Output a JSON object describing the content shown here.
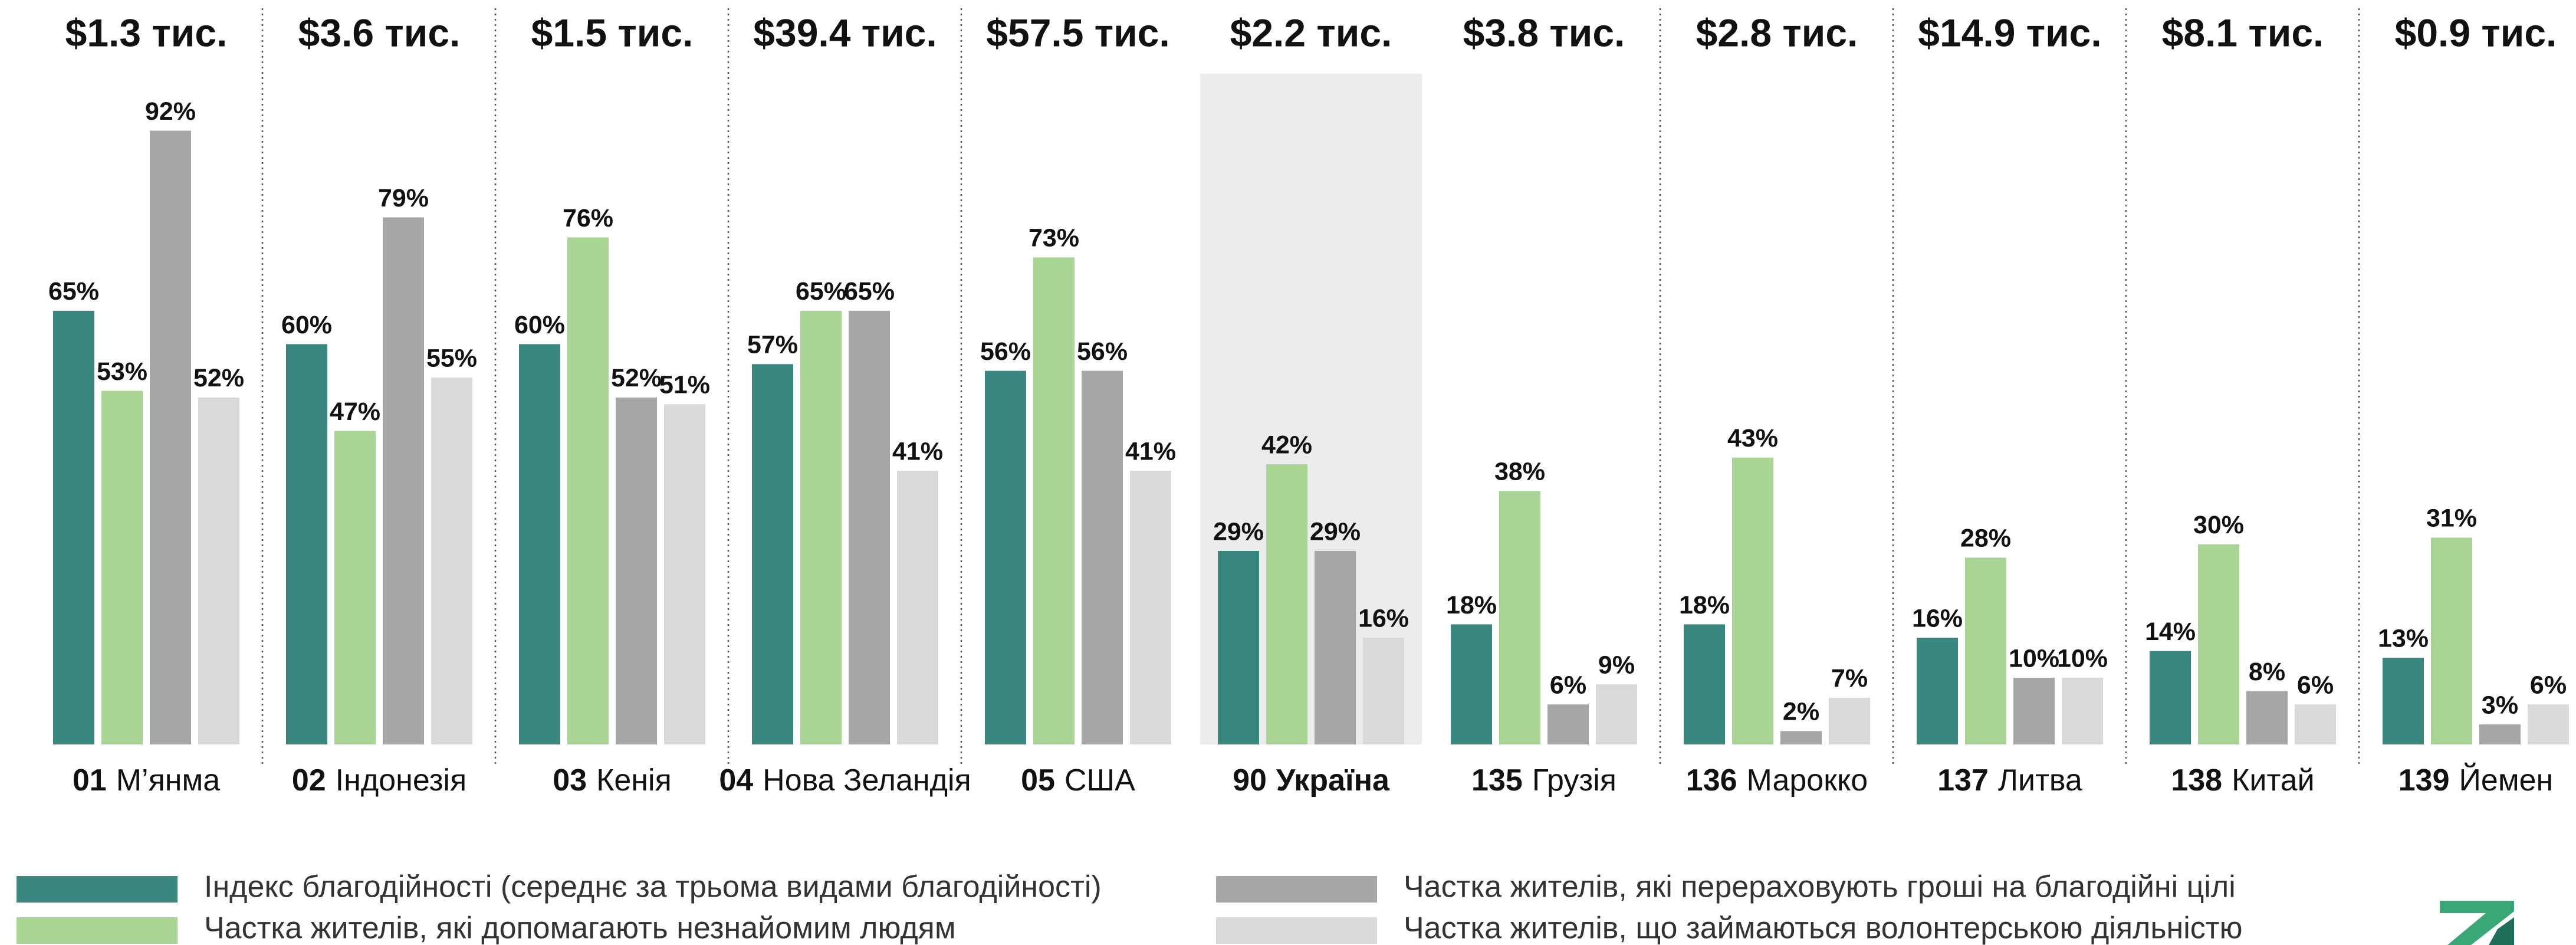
{
  "chart_data": {
    "type": "bar",
    "top_labels": [
      "$1.3 тис.",
      "$3.6 тис.",
      "$1.5 тис.",
      "$39.4 тис.",
      "$57.5 тис.",
      "$2.2 тис.",
      "$3.8 тис.",
      "$2.8 тис.",
      "$14.9 тис.",
      "$8.1 тис.",
      "$0.9 тис."
    ],
    "ranks": [
      "01",
      "02",
      "03",
      "04",
      "05",
      "90",
      "135",
      "136",
      "137",
      "138",
      "139"
    ],
    "categories": [
      "М’янма",
      "Індонезія",
      "Кенія",
      "Нова Зеландія",
      "США",
      "Україна",
      "Грузія",
      "Марокко",
      "Литва",
      "Китай",
      "Йемен"
    ],
    "highlight": 5,
    "ylim": [
      0,
      100
    ],
    "series": [
      {
        "name": "Індекс благодійності (середнє за трьома видами благодійності)",
        "color": "#3a877f",
        "values": [
          65,
          60,
          60,
          57,
          56,
          29,
          18,
          18,
          16,
          14,
          13
        ],
        "value_labels": [
          "65%",
          "60%",
          "60%",
          "57%",
          "56%",
          "29%",
          "18%",
          "18%",
          "16%",
          "14%",
          "13%"
        ]
      },
      {
        "name": "Частка жителів, які допомагають незнайомим людям",
        "color": "#a8d594",
        "values": [
          53,
          47,
          76,
          65,
          73,
          42,
          38,
          43,
          28,
          30,
          31
        ],
        "value_labels": [
          "53%",
          "47%",
          "76%",
          "65%",
          "73%",
          "42%",
          "38%",
          "43%",
          "28%",
          "30%",
          "31%"
        ]
      },
      {
        "name": "Частка жителів, які перераховують гроші на благодійні цілі",
        "color": "#a6a6a6",
        "values": [
          92,
          79,
          52,
          65,
          56,
          29,
          6,
          2,
          10,
          8,
          3
        ],
        "value_labels": [
          "92%",
          "79%",
          "52%",
          "65%",
          "56%",
          "29%",
          "6%",
          "2%",
          "10%",
          "8%",
          "3%"
        ]
      },
      {
        "name": "Частка жителів, що займаються волонтерською діяльністю",
        "color": "#d9d9d9",
        "values": [
          52,
          55,
          51,
          41,
          41,
          16,
          9,
          7,
          10,
          6,
          6
        ],
        "value_labels": [
          "52%",
          "55%",
          "51%",
          "41%",
          "41%",
          "16%",
          "9%",
          "7%",
          "10%",
          "6%",
          "6%"
        ]
      }
    ]
  }
}
